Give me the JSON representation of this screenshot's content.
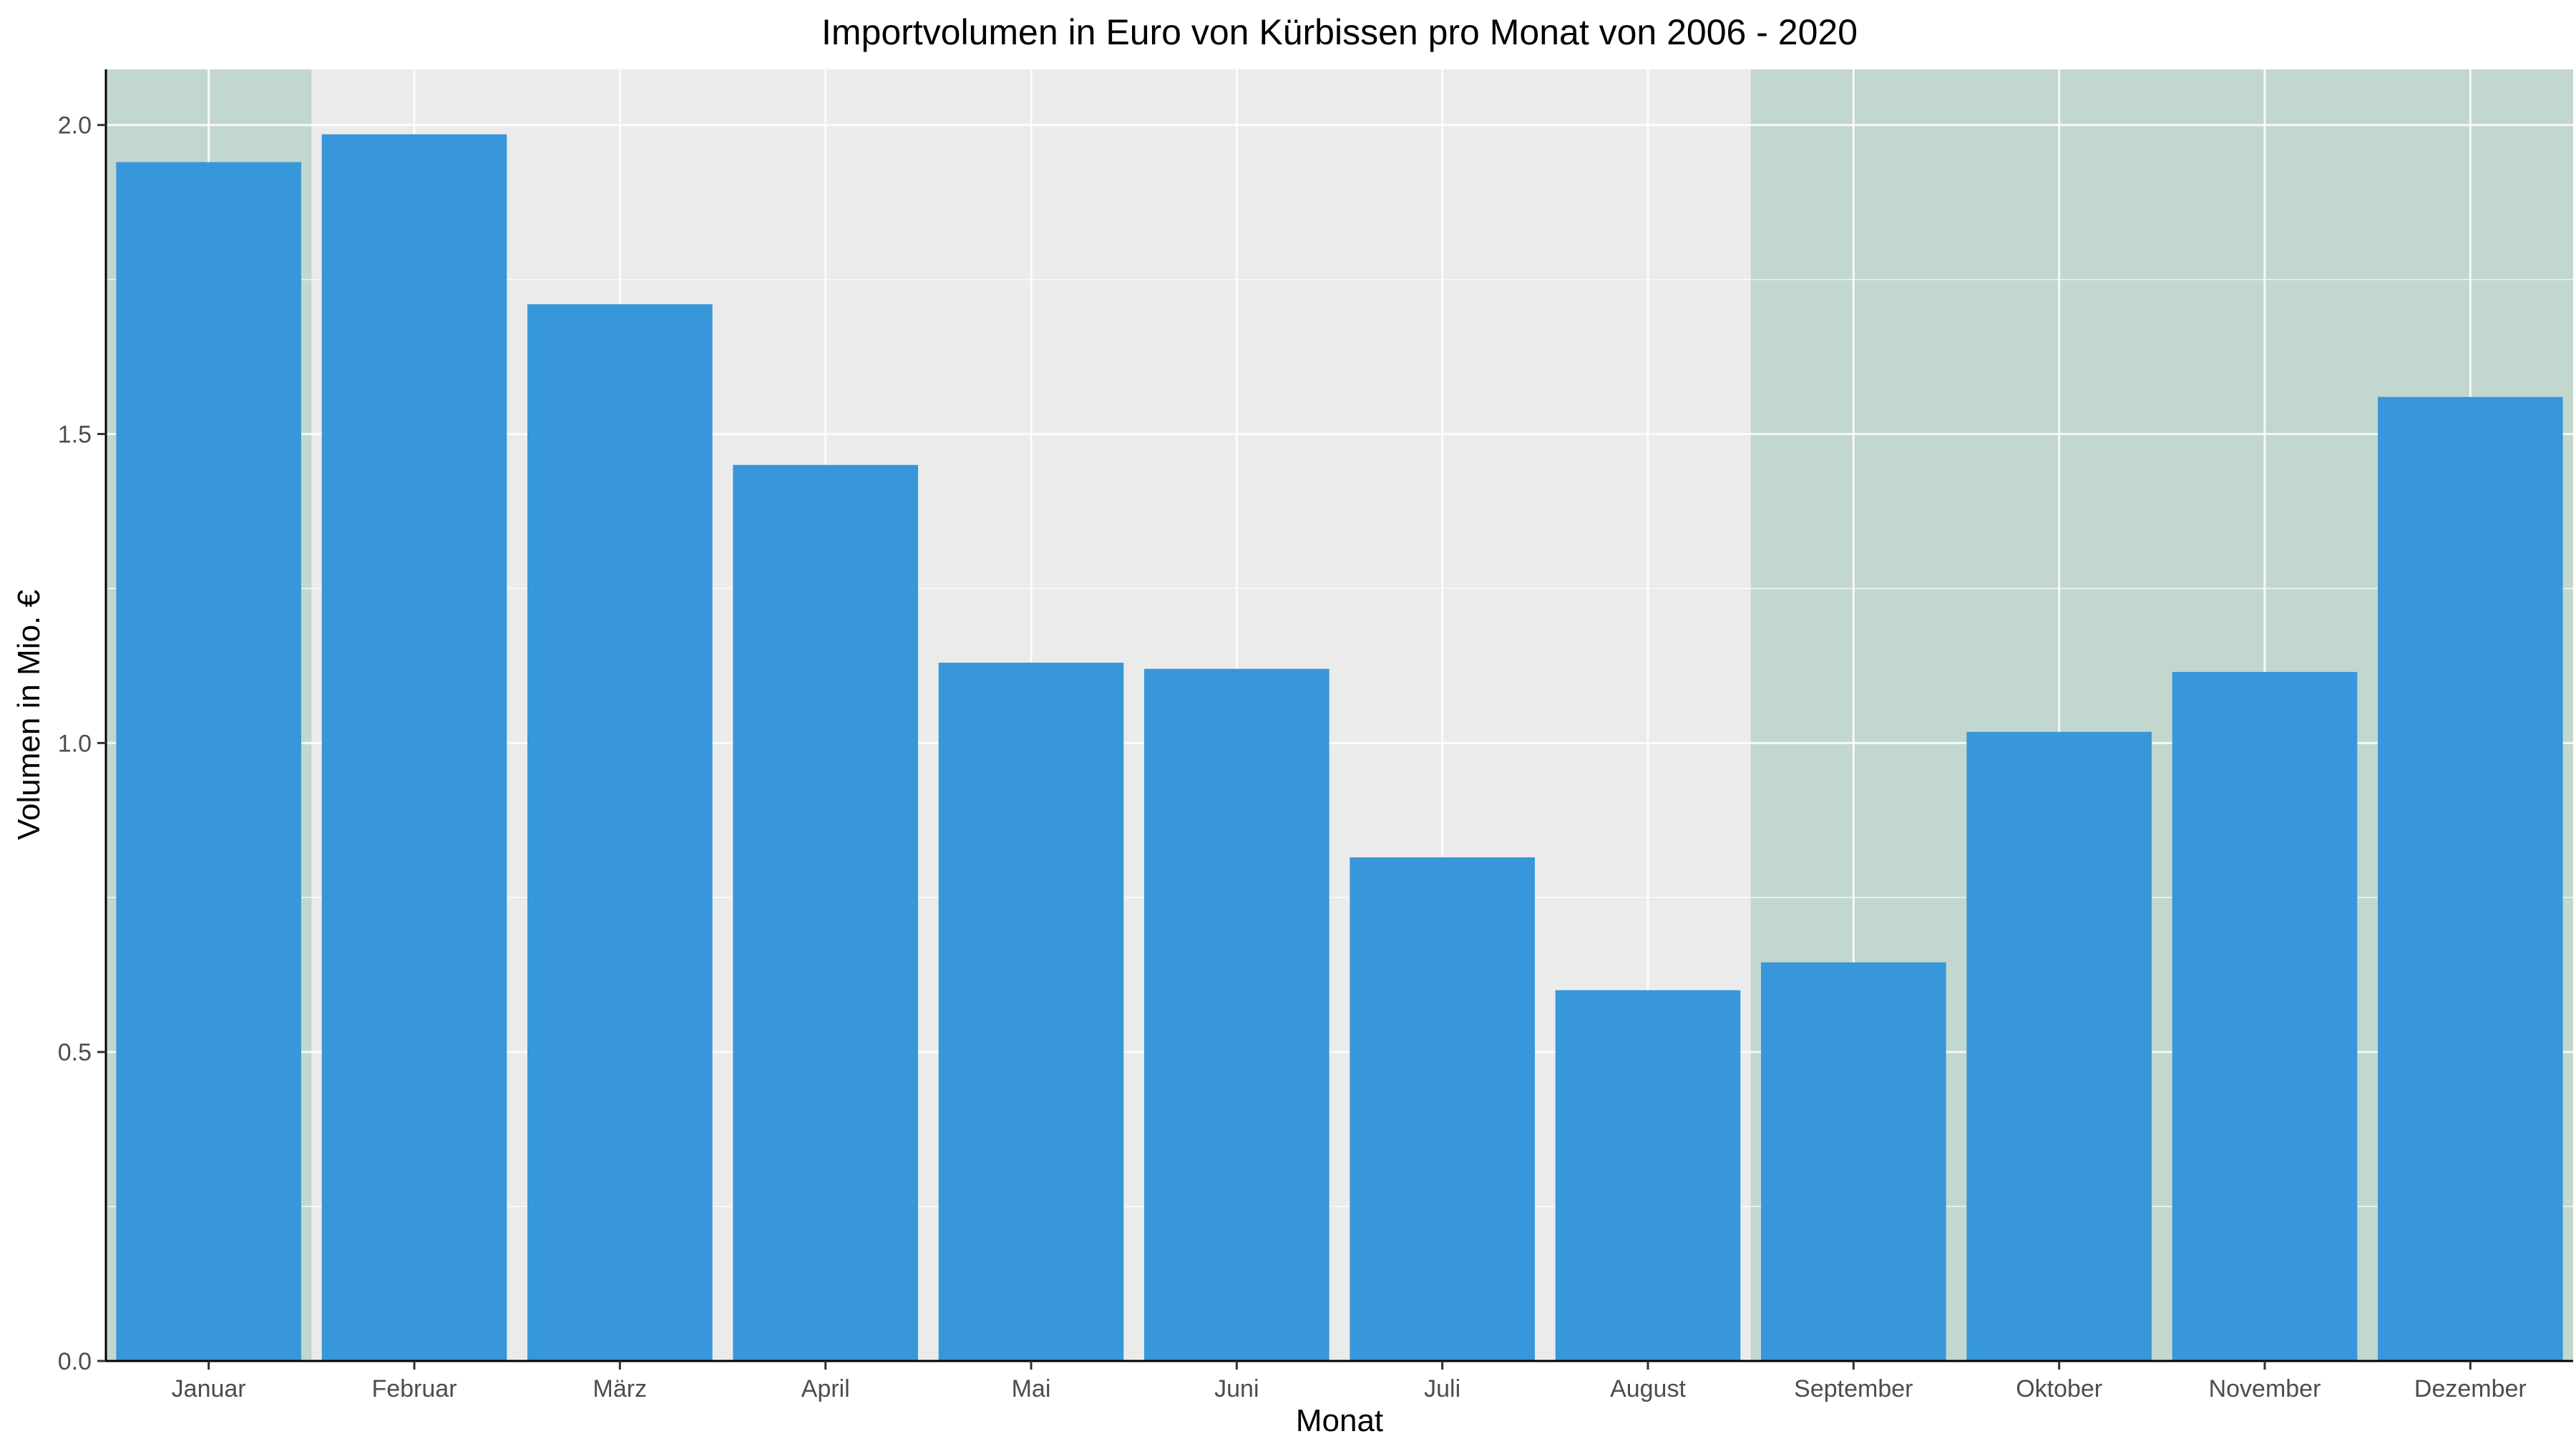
{
  "chart_data": {
    "type": "bar",
    "title": "Importvolumen in Euro von Kürbissen pro Monat von 2006 - 2020",
    "xlabel": "Monat",
    "ylabel": "Volumen in Mio. €",
    "categories": [
      "Januar",
      "Februar",
      "März",
      "April",
      "Mai",
      "Juni",
      "Juli",
      "August",
      "September",
      "Oktober",
      "November",
      "Dezember"
    ],
    "values": [
      1.94,
      1.985,
      1.71,
      1.45,
      1.13,
      1.12,
      0.815,
      0.6,
      0.645,
      1.018,
      1.115,
      1.56
    ],
    "ylim": [
      0,
      2.09
    ],
    "y_ticks": [
      0.0,
      0.5,
      1.0,
      1.5,
      2.0
    ],
    "y_tick_labels": [
      "0.0",
      "0.5",
      "1.0",
      "1.5",
      "2.0"
    ],
    "grid": true,
    "legend": "none",
    "highlighted_periods": [
      {
        "from": "Januar",
        "to": "Januar"
      },
      {
        "from": "September",
        "to": "Dezember"
      }
    ],
    "colors": {
      "bar": "#3797da",
      "panel_background": "#ebebeb",
      "highlight": "#c2d7cd",
      "grid": "#ffffff"
    }
  }
}
